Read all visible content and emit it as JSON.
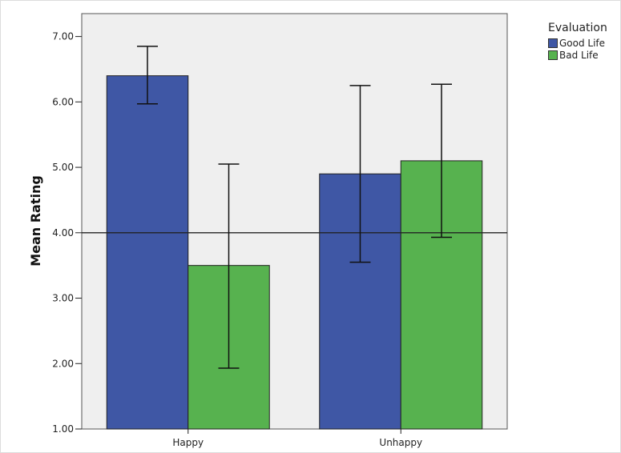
{
  "chart_data": {
    "type": "bar",
    "title": "",
    "xlabel": "",
    "ylabel": "Mean Rating",
    "ylim": [
      1,
      7.35
    ],
    "yticks": [
      "1.00",
      "2.00",
      "3.00",
      "4.00",
      "5.00",
      "6.00",
      "7.00"
    ],
    "categories": [
      "Happy",
      "Unhappy"
    ],
    "reference_line": 4.0,
    "grid": false,
    "legend": {
      "title": "Evaluation",
      "placement": "top-right"
    },
    "series": [
      {
        "name": "Good Life",
        "color": "#3f57a5",
        "values": [
          6.4,
          4.9
        ],
        "error_low": [
          5.97,
          3.55
        ],
        "error_high": [
          6.85,
          6.25
        ]
      },
      {
        "name": "Bad Life",
        "color": "#57b24f",
        "values": [
          3.5,
          5.1
        ],
        "error_low": [
          1.93,
          3.93
        ],
        "error_high": [
          5.05,
          6.27
        ]
      }
    ],
    "plot_background": "#efefef"
  }
}
